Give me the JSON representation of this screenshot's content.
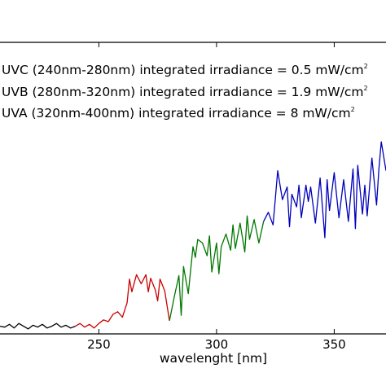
{
  "chart_data": {
    "type": "line",
    "xlabel": "wavelenght [nm]",
    "ylabel": "",
    "xlim": [
      208,
      372
    ],
    "ylim": [
      0,
      10
    ],
    "x_ticks": [
      250,
      300,
      350
    ],
    "x_tick_labels": [
      "250",
      "300",
      "350"
    ],
    "grid": false,
    "annotations": [
      {
        "text": "UVC (240nm-280nm) integrated irradiance = 0.5 mW/cm",
        "sup": "2"
      },
      {
        "text": "UVB (280nm-320nm) integrated irradiance = 1.9 mW/cm",
        "sup": "2"
      },
      {
        "text": "UVA (320nm-400nm) integrated irradiance = 8 mW/cm",
        "sup": "2"
      }
    ],
    "series": [
      {
        "color": "#000000",
        "x": [
          208,
          210,
          212,
          214,
          216,
          218,
          220,
          222,
          224,
          226,
          228,
          230,
          232,
          234,
          236,
          238,
          240
        ],
        "y": [
          0.2,
          0.15,
          0.3,
          0.1,
          0.35,
          0.2,
          0.05,
          0.25,
          0.15,
          0.3,
          0.1,
          0.2,
          0.35,
          0.15,
          0.25,
          0.1,
          0.2
        ]
      },
      {
        "color": "#cc0000",
        "x": [
          240,
          242,
          244,
          246,
          248,
          250,
          252,
          254,
          256,
          258,
          260,
          262,
          263,
          264,
          266,
          268,
          270,
          271,
          272,
          274,
          275,
          276,
          278,
          280
        ],
        "y": [
          0.2,
          0.35,
          0.15,
          0.3,
          0.1,
          0.35,
          0.55,
          0.45,
          0.85,
          1.0,
          0.7,
          1.5,
          2.8,
          2.1,
          3.05,
          2.55,
          3.05,
          2.1,
          2.85,
          2.2,
          1.6,
          2.8,
          2.15,
          0.5
        ]
      },
      {
        "color": "#007700",
        "x": [
          280,
          282,
          284,
          285,
          286,
          288,
          290,
          291,
          292,
          294,
          296,
          297,
          298,
          300,
          301,
          302,
          304,
          306,
          307,
          308,
          310,
          312,
          313,
          314,
          316,
          318,
          320
        ],
        "y": [
          0.5,
          1.8,
          3.0,
          0.8,
          3.5,
          2.0,
          4.6,
          4.0,
          5.0,
          4.8,
          4.1,
          5.2,
          3.2,
          4.8,
          3.1,
          4.6,
          5.3,
          4.4,
          5.8,
          4.5,
          5.9,
          4.3,
          6.3,
          5.0,
          6.1,
          4.8,
          6.0
        ]
      },
      {
        "color": "#0000bb",
        "x": [
          320,
          322,
          324,
          325,
          326,
          328,
          330,
          331,
          332,
          334,
          335,
          336,
          338,
          339,
          340,
          342,
          344,
          346,
          347,
          348,
          350,
          352,
          354,
          356,
          358,
          359,
          360,
          362,
          363,
          364,
          366,
          368,
          369,
          370,
          372
        ],
        "y": [
          6.0,
          6.5,
          5.8,
          7.3,
          8.8,
          7.2,
          7.9,
          5.7,
          7.5,
          6.8,
          8.0,
          6.2,
          8.0,
          7.1,
          7.9,
          5.9,
          8.4,
          5.1,
          8.3,
          6.6,
          8.7,
          6.2,
          8.3,
          6.0,
          8.9,
          5.6,
          9.1,
          6.4,
          8.0,
          6.3,
          9.5,
          6.9,
          8.9,
          10.4,
          8.8
        ]
      }
    ]
  }
}
